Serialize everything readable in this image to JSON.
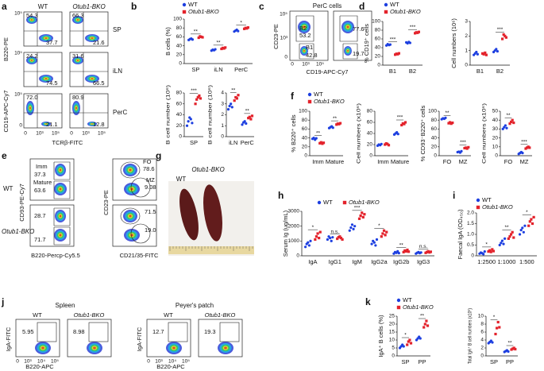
{
  "panel_labels": [
    "a",
    "b",
    "c",
    "d",
    "e",
    "f",
    "g",
    "h",
    "i",
    "j",
    "k"
  ],
  "legend": {
    "wt": "WT",
    "bko": "Otub1-BKO"
  },
  "a": {
    "columns": [
      "WT",
      "Otub1-BKO"
    ],
    "rows": [
      "SP",
      "iLN",
      "PerC"
    ],
    "y_labels": [
      "B220-PE",
      "CD19-APC-Cy7"
    ],
    "x_label": "TCRβ-FITC",
    "x_ticks": [
      "0",
      "10³",
      "10⁵"
    ],
    "y_ticks": [
      "0",
      "10⁵"
    ],
    "gates": [
      "54.3",
      "37.7",
      "66.3",
      "21.6",
      "24.2",
      "74.5",
      "31.6",
      "66.5",
      "72.0",
      "21.1",
      "80.9",
      "12.8"
    ]
  },
  "c": {
    "title": "PerC cells",
    "labels": [
      "B2",
      "53.2",
      "B1",
      "42.8",
      "77.6",
      "19.7"
    ],
    "y_label": "CD23-PE",
    "x_label": "CD19-APC-Cy7",
    "x_ticks": [
      "0",
      "10³",
      "10⁵"
    ],
    "y_ticks": [
      "0",
      "10³",
      "10⁵"
    ]
  },
  "e": {
    "rows": [
      "WT",
      "Otub1-BKO"
    ],
    "labels": [
      "Imm",
      "37.3",
      "Mature",
      "63.6",
      "28.7",
      "71.7",
      "FO",
      "78.6",
      "MZ",
      "9.08",
      "71.5",
      "19.0"
    ],
    "y_labels": [
      "CD93-PE-Cy7",
      "CD23-PE"
    ],
    "x_labels": [
      "B220-Percp-Cy5.5",
      "CD21/35-FITC"
    ]
  },
  "g": {
    "columns": [
      "WT",
      "Otub1-BKO"
    ]
  },
  "j": {
    "groups": [
      "Spleen",
      "Peyer's patch"
    ],
    "columns": [
      "WT",
      "Otub1-BKO"
    ],
    "gates": [
      "5.95",
      "8.98",
      "12.7",
      "19.3"
    ],
    "y_label": "IgA-FITC",
    "x_label": "B220-APC",
    "x_ticks": [
      "0",
      "10³",
      "10⁴",
      "10⁵"
    ]
  },
  "charts": {
    "b1": {
      "type": "dot",
      "ylabel": "B cells (%)",
      "ylim": [
        0,
        100
      ],
      "yticks": [
        0,
        20,
        40,
        60,
        80,
        100
      ],
      "categories": [
        "SP",
        "iLN",
        "PerC"
      ],
      "signif": [
        "**",
        "**",
        "*"
      ],
      "series": [
        {
          "color": "#1d3fe0",
          "marker": "circle",
          "values": [
            [
              53,
              55,
              56,
              54
            ],
            [
              29,
              31,
              30,
              32
            ],
            [
              72,
              74,
              76,
              73
            ]
          ]
        },
        {
          "color": "#e3222b",
          "marker": "square",
          "values": [
            [
              58,
              61,
              60,
              59
            ],
            [
              33,
              35,
              34,
              36
            ],
            [
              78,
              80,
              79,
              81
            ]
          ]
        }
      ]
    },
    "b2": {
      "type": "dot",
      "ylabel": "B cell number (10⁶)",
      "ylim": [
        0,
        80
      ],
      "yticks": [
        0,
        20,
        40,
        60,
        80
      ],
      "categories": [
        "SP"
      ],
      "signif": [
        "***"
      ],
      "series": [
        {
          "color": "#1d3fe0",
          "marker": "circle",
          "values": [
            [
              20,
              28,
              35,
              32,
              25
            ]
          ]
        },
        {
          "color": "#e3222b",
          "marker": "square",
          "values": [
            [
              60,
              68,
              72,
              75,
              70
            ]
          ]
        }
      ]
    },
    "b3": {
      "type": "dot",
      "ylabel": "B cell number (10⁶)",
      "ylim": [
        0,
        4
      ],
      "yticks": [
        0,
        1,
        2,
        3,
        4
      ],
      "categories": [
        "iLN",
        "PerC"
      ],
      "signif": [
        "**",
        "**"
      ],
      "series": [
        {
          "color": "#1d3fe0",
          "marker": "circle",
          "values": [
            [
              2.5,
              2.8,
              3.0,
              2.7
            ],
            [
              1.1,
              1.3,
              1.4,
              1.2
            ]
          ]
        },
        {
          "color": "#e3222b",
          "marker": "square",
          "values": [
            [
              3.3,
              3.6,
              3.5,
              3.8
            ],
            [
              1.7,
              1.8,
              1.6,
              1.9
            ]
          ]
        }
      ]
    },
    "d1": {
      "type": "dot",
      "ylabel": "% CD19⁺ cells",
      "ylim": [
        0,
        100
      ],
      "yticks": [
        0,
        20,
        40,
        60,
        80,
        100
      ],
      "categories": [
        "B1",
        "B2"
      ],
      "signif": [
        "***",
        "***"
      ],
      "series": [
        {
          "color": "#1d3fe0",
          "marker": "circle",
          "values": [
            [
              45,
              48,
              46,
              47
            ],
            [
              52,
              50,
              53,
              51
            ]
          ]
        },
        {
          "color": "#e3222b",
          "marker": "square",
          "values": [
            [
              24,
              26,
              25,
              27
            ],
            [
              73,
              75,
              74,
              76
            ]
          ]
        }
      ]
    },
    "d2": {
      "type": "dot",
      "ylabel": "Cell numbers (10⁶)",
      "ylim": [
        0,
        3
      ],
      "yticks": [
        0,
        1,
        2,
        3
      ],
      "categories": [
        "B1",
        "B2"
      ],
      "signif": [
        null,
        "***"
      ],
      "series": [
        {
          "color": "#1d3fe0",
          "marker": "circle",
          "values": [
            [
              0.7,
              0.8,
              0.9,
              0.75
            ],
            [
              0.9,
              1.0,
              1.1,
              0.95
            ]
          ]
        },
        {
          "color": "#e3222b",
          "marker": "square",
          "values": [
            [
              0.8,
              0.75,
              0.85,
              0.7
            ],
            [
              1.8,
              2.1,
              2.0,
              1.9
            ]
          ]
        }
      ]
    },
    "f1": {
      "type": "dot",
      "ylabel": "% B220⁺ cells",
      "ylim": [
        0,
        100
      ],
      "yticks": [
        0,
        20,
        40,
        60,
        80,
        100
      ],
      "categories": [
        "Imm",
        "Mature"
      ],
      "signif": [
        "**",
        "**"
      ],
      "series": [
        {
          "color": "#1d3fe0",
          "marker": "circle",
          "values": [
            [
              38,
              40,
              36,
              39
            ],
            [
              62,
              64,
              66,
              63
            ]
          ]
        },
        {
          "color": "#e3222b",
          "marker": "square",
          "values": [
            [
              28,
              30,
              27,
              29
            ],
            [
              70,
              72,
              71,
              73
            ]
          ]
        }
      ]
    },
    "f2": {
      "type": "dot",
      "ylabel": "Cell numbers (x10⁶)",
      "ylim": [
        0,
        80
      ],
      "yticks": [
        0,
        20,
        40,
        60,
        80
      ],
      "categories": [
        "Imm",
        "Mature"
      ],
      "signif": [
        null,
        "***"
      ],
      "series": [
        {
          "color": "#1d3fe0",
          "marker": "circle",
          "values": [
            [
              18,
              20,
              19,
              21
            ],
            [
              38,
              40,
              42,
              39
            ]
          ]
        },
        {
          "color": "#e3222b",
          "marker": "square",
          "values": [
            [
              20,
              22,
              21,
              19
            ],
            [
              55,
              58,
              57,
              60
            ]
          ]
        }
      ]
    },
    "f3": {
      "type": "dot",
      "ylabel": "% CD93⁻B220⁺ cells",
      "ylim": [
        0,
        100
      ],
      "yticks": [
        0,
        20,
        40,
        60,
        80,
        100
      ],
      "categories": [
        "FO",
        "MZ"
      ],
      "signif": [
        "**",
        "***"
      ],
      "series": [
        {
          "color": "#1d3fe0",
          "marker": "circle",
          "values": [
            [
              82,
              84,
              83,
              85
            ],
            [
              8,
              9,
              7,
              10
            ]
          ]
        },
        {
          "color": "#e3222b",
          "marker": "square",
          "values": [
            [
              73,
              75,
              72,
              74
            ],
            [
              17,
              18,
              16,
              19
            ]
          ]
        }
      ]
    },
    "f4": {
      "type": "dot",
      "ylabel": "Cell numbers (x10⁶)",
      "ylim": [
        0,
        50
      ],
      "yticks": [
        0,
        10,
        20,
        30,
        40,
        50
      ],
      "categories": [
        "FO",
        "MZ"
      ],
      "signif": [
        "**",
        "***"
      ],
      "series": [
        {
          "color": "#1d3fe0",
          "marker": "circle",
          "values": [
            [
              30,
              32,
              34,
              31
            ],
            [
              2,
              3,
              4,
              3
            ]
          ]
        },
        {
          "color": "#e3222b",
          "marker": "square",
          "values": [
            [
              36,
              38,
              40,
              37
            ],
            [
              8,
              9,
              10,
              9
            ]
          ]
        }
      ]
    },
    "h": {
      "type": "dot",
      "ylabel": "Serum Ig (ug/mL)",
      "ylim": [
        0,
        3000
      ],
      "yticks": [
        0,
        1000,
        2000,
        3000
      ],
      "categories": [
        "IgA",
        "IgG1",
        "IgM",
        "IgG2a",
        "IgG2b",
        "IgG3"
      ],
      "signif": [
        "*",
        "n.s.",
        "***",
        "*",
        "**",
        "n.s."
      ],
      "series": [
        {
          "color": "#1d3fe0",
          "marker": "circle",
          "values": [
            [
              600,
              800,
              900,
              700,
              1000
            ],
            [
              1100,
              1300,
              1200,
              1000,
              1250
            ],
            [
              1700,
              1900,
              2100,
              1800,
              2000
            ],
            [
              800,
              1000,
              900,
              700,
              1100
            ],
            [
              150,
              250,
              200,
              300,
              180
            ],
            [
              150,
              200,
              250,
              180,
              220
            ]
          ]
        },
        {
          "color": "#e3222b",
          "marker": "square",
          "values": [
            [
              1100,
              1300,
              1500,
              1200,
              1600
            ],
            [
              1150,
              1250,
              1300,
              1200,
              1100
            ],
            [
              2500,
              2700,
              2900,
              2600,
              2800
            ],
            [
              1300,
              1500,
              1700,
              1400,
              1600
            ],
            [
              250,
              350,
              300,
              400,
              280
            ],
            [
              200,
              250,
              300,
              230,
              270
            ]
          ]
        }
      ]
    },
    "i": {
      "type": "dot",
      "ylabel": "Faecal IgA (OD₄₅₀)",
      "ylim": [
        0,
        2
      ],
      "yticks": [
        0,
        0.5,
        {
          "value": 1,
          "label": "1.0"
        },
        1.5,
        {
          "value": 2,
          "label": "2.0"
        }
      ],
      "categories": [
        "1:2500",
        "1:1000",
        "1:500"
      ],
      "signif": [
        "*",
        "**",
        "*"
      ],
      "series": [
        {
          "color": "#1d3fe0",
          "marker": "circle",
          "values": [
            [
              0.1,
              0.15,
              0.12,
              0.08,
              0.2
            ],
            [
              0.5,
              0.6,
              0.7,
              0.55,
              0.8
            ],
            [
              1.0,
              1.2,
              1.3,
              1.1,
              1.4
            ]
          ]
        },
        {
          "color": "#e3222b",
          "marker": "square",
          "values": [
            [
              0.2,
              0.25,
              0.18,
              0.3,
              0.22
            ],
            [
              0.8,
              0.9,
              1.0,
              1.1,
              0.85
            ],
            [
              1.4,
              1.6,
              1.7,
              1.5,
              1.8
            ]
          ]
        }
      ]
    },
    "k1": {
      "type": "dot",
      "ylabel": "IgA⁺ B cells (%)",
      "ylim": [
        0,
        25
      ],
      "yticks": [
        0,
        5,
        10,
        15,
        20,
        25
      ],
      "categories": [
        "SP",
        "PP"
      ],
      "signif": [
        "*",
        "**"
      ],
      "series": [
        {
          "color": "#1d3fe0",
          "marker": "circle",
          "values": [
            [
              5,
              6,
              7,
              6
            ],
            [
              10,
              11,
              12,
              11
            ]
          ]
        },
        {
          "color": "#e3222b",
          "marker": "square",
          "values": [
            [
              7,
              9,
              10,
              8
            ],
            [
              18,
              20,
              22,
              19
            ]
          ]
        }
      ]
    },
    "k2": {
      "type": "dot",
      "ylabel": "Total IgA⁺ B cell numbers (x10⁶)",
      "ylim": [
        0,
        10
      ],
      "yticks": [
        0,
        2,
        4,
        6,
        8,
        10
      ],
      "categories": [
        "SP",
        "PP"
      ],
      "signif": [
        "*",
        "**"
      ],
      "series": [
        {
          "color": "#1d3fe0",
          "marker": "circle",
          "values": [
            [
              3.2,
              3.5,
              3.8,
              3.4
            ],
            [
              1.0,
              1.2,
              1.4,
              1.1
            ]
          ]
        },
        {
          "color": "#e3222b",
          "marker": "square",
          "values": [
            [
              5.5,
              7,
              8.5,
              7.2
            ],
            [
              1.6,
              1.8,
              2.0,
              1.7
            ]
          ]
        }
      ]
    }
  }
}
